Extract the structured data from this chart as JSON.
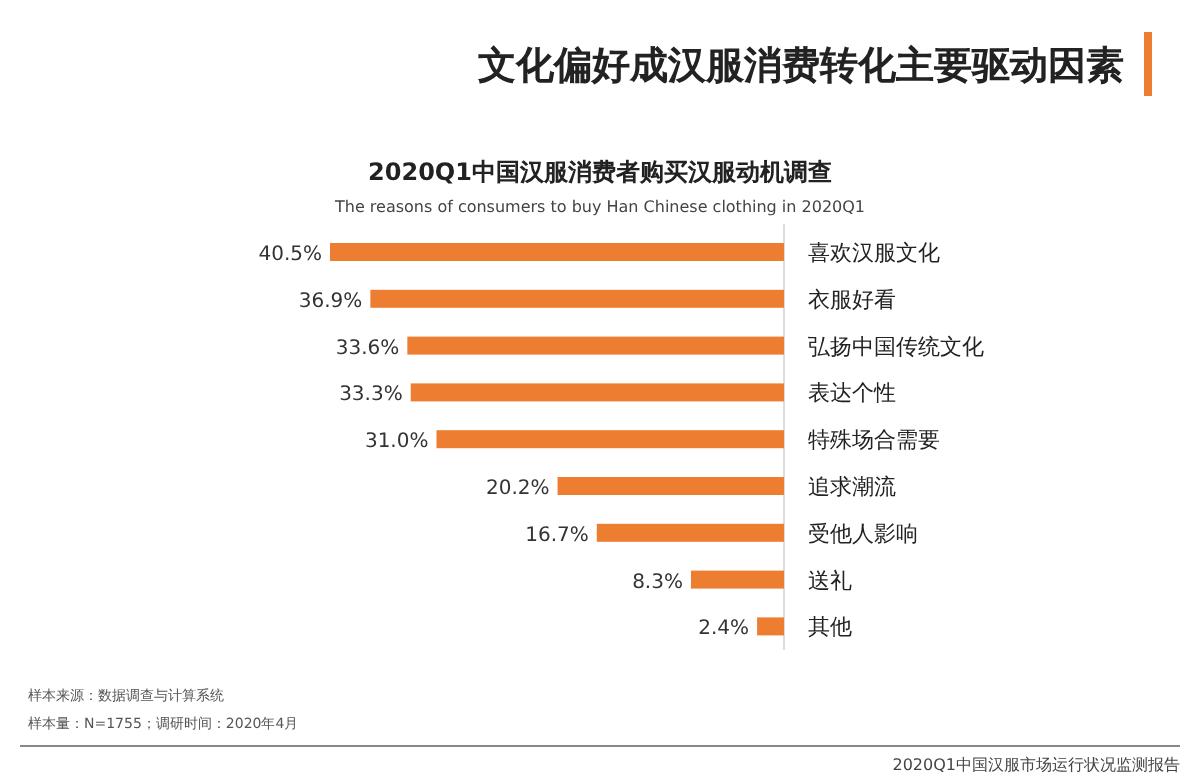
{
  "chart_data": {
    "type": "bar",
    "orientation": "horizontal",
    "title": "文化偏好成汉服消费转化主要驱动因素",
    "subtitle": "2020Q1中国汉服消费者购买汉服动机调查",
    "annotations": [
      "The reasons of consumers to buy Han Chinese clothing  in 2020Q1",
      "样本来源：数据调查与计算系统",
      "样本量：N=1755；调研时间：2020年4月",
      "2020Q1中国汉服市场运行状况监测报告"
    ],
    "categories": [
      "喜欢汉服文化",
      "衣服好看",
      "弘扬中国传统文化",
      "表达个性",
      "特殊场合需要",
      "追求潮流",
      "受他人影响",
      "送礼",
      "其他"
    ],
    "values": [
      40.5,
      36.9,
      33.6,
      33.3,
      31.0,
      20.2,
      16.7,
      8.3,
      2.4
    ],
    "value_labels": [
      "40.5%",
      "36.9%",
      "33.6%",
      "33.3%",
      "31.0%",
      "20.2%",
      "16.7%",
      "8.3%",
      "2.4%"
    ],
    "color": "#ed7d31"
  }
}
